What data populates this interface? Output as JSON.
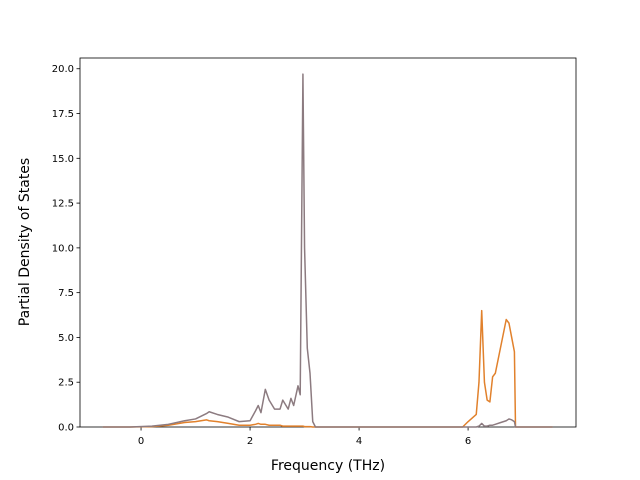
{
  "chart_data": {
    "type": "line",
    "x_label": "Frequency (THz)",
    "y_label": "Partial Density of States",
    "x": [
      -0.7,
      -0.2,
      0.2,
      0.5,
      0.8,
      1.0,
      1.2,
      1.25,
      1.4,
      1.6,
      1.8,
      2.0,
      2.1,
      2.15,
      2.2,
      2.28,
      2.35,
      2.45,
      2.55,
      2.6,
      2.7,
      2.75,
      2.8,
      2.88,
      2.92,
      2.97,
      3.0,
      3.05,
      3.1,
      3.15,
      3.2,
      4.0,
      5.0,
      5.9,
      6.0,
      6.15,
      6.2,
      6.25,
      6.3,
      6.35,
      6.4,
      6.45,
      6.5,
      6.6,
      6.7,
      6.75,
      6.8,
      6.85,
      6.87,
      7.0,
      7.55
    ],
    "series": [
      {
        "color": "#e1812c",
        "values": [
          0,
          0,
          0.02,
          0.1,
          0.25,
          0.3,
          0.4,
          0.35,
          0.3,
          0.2,
          0.1,
          0.1,
          0.15,
          0.2,
          0.15,
          0.15,
          0.1,
          0.1,
          0.1,
          0.05,
          0.05,
          0.05,
          0.05,
          0.05,
          0.05,
          0.05,
          0.02,
          0.02,
          0.02,
          0,
          0,
          0,
          0,
          0,
          0.3,
          0.7,
          2.5,
          6.5,
          2.5,
          1.5,
          1.4,
          2.8,
          3.0,
          4.5,
          6.0,
          5.8,
          5.0,
          4.2,
          0,
          0,
          0
        ]
      },
      {
        "color": "#8c7b80",
        "values": [
          0,
          0,
          0.05,
          0.15,
          0.35,
          0.45,
          0.75,
          0.85,
          0.7,
          0.55,
          0.3,
          0.35,
          0.9,
          1.2,
          0.8,
          2.1,
          1.5,
          1.0,
          1.0,
          1.5,
          1.0,
          1.6,
          1.2,
          2.3,
          1.8,
          19.7,
          10,
          4.4,
          3.0,
          0.3,
          0,
          0,
          0,
          0,
          0,
          0,
          0.05,
          0.2,
          0.05,
          0.05,
          0.1,
          0.1,
          0.15,
          0.25,
          0.35,
          0.45,
          0.4,
          0.3,
          0,
          0,
          0
        ]
      }
    ],
    "xlim": [
      -1.12,
      7.98
    ],
    "xticks": [
      0,
      2,
      4,
      6
    ],
    "ylim": [
      0,
      20.6
    ],
    "yticks": [
      {
        "value": 0,
        "label": "0.0"
      },
      2.5,
      {
        "value": 5,
        "label": "5.0"
      },
      7.5,
      {
        "value": 10,
        "label": "10.0"
      },
      12.5,
      {
        "value": 15,
        "label": "15.0"
      },
      17.5,
      {
        "value": 20,
        "label": "20.0"
      }
    ]
  }
}
